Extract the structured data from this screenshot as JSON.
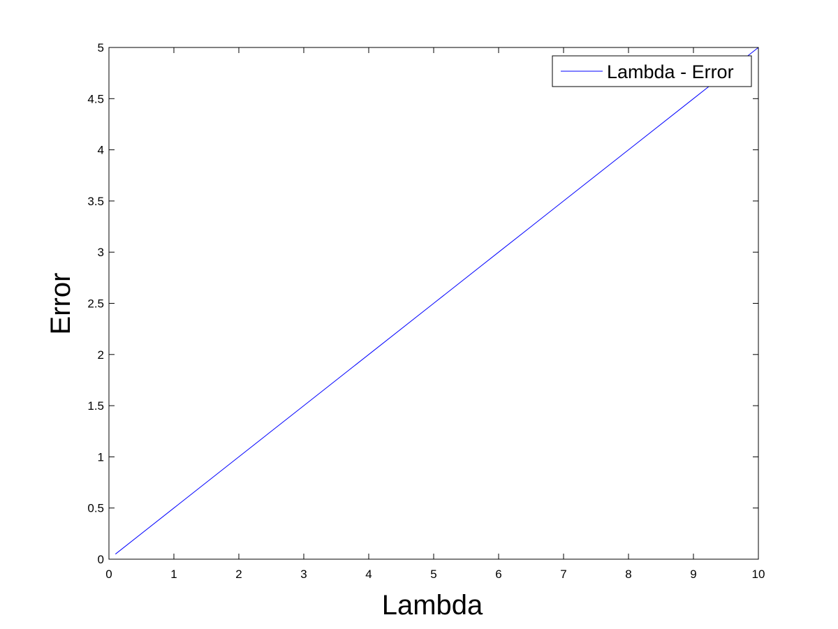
{
  "chart_data": {
    "type": "line",
    "title": "",
    "xlabel": "Lambda",
    "ylabel": "Error",
    "xlim": [
      0,
      10
    ],
    "ylim": [
      0,
      5
    ],
    "xticks": [
      "0",
      "1",
      "2",
      "3",
      "4",
      "5",
      "6",
      "7",
      "8",
      "9",
      "10"
    ],
    "yticks": [
      "0",
      "0.5",
      "1",
      "1.5",
      "2",
      "2.5",
      "3",
      "3.5",
      "4",
      "4.5",
      "5"
    ],
    "grid": false,
    "legend_position": "top-right",
    "series": [
      {
        "name": "Lambda - Error",
        "color": "#0000ff",
        "x": [
          0.1,
          1,
          2,
          3,
          4,
          5,
          6,
          7,
          8,
          9,
          10
        ],
        "y": [
          0.05,
          0.5,
          1.0,
          1.5,
          2.0,
          2.5,
          3.0,
          3.5,
          4.0,
          4.5,
          5.0
        ]
      }
    ]
  }
}
